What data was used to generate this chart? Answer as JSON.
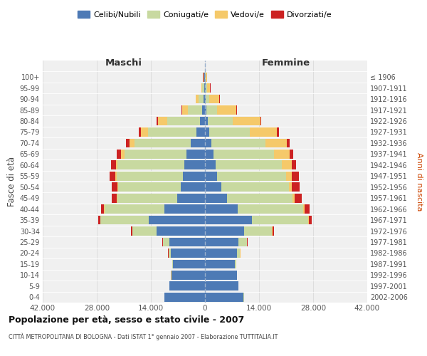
{
  "age_groups": [
    "0-4",
    "5-9",
    "10-14",
    "15-19",
    "20-24",
    "25-29",
    "30-34",
    "35-39",
    "40-44",
    "45-49",
    "50-54",
    "55-59",
    "60-64",
    "65-69",
    "70-74",
    "75-79",
    "80-84",
    "85-89",
    "90-94",
    "95-99",
    "100+"
  ],
  "birth_years": [
    "2002-2006",
    "1997-2001",
    "1992-1996",
    "1987-1991",
    "1982-1986",
    "1977-1981",
    "1972-1976",
    "1967-1971",
    "1962-1966",
    "1957-1961",
    "1952-1956",
    "1947-1951",
    "1942-1946",
    "1937-1941",
    "1932-1936",
    "1927-1931",
    "1922-1926",
    "1917-1921",
    "1912-1916",
    "1907-1911",
    "≤ 1906"
  ],
  "colors": {
    "celibe": "#4d7ab5",
    "coniugato": "#c8d9a0",
    "vedovo": "#f5c96a",
    "divorziato": "#cc2222"
  },
  "males": {
    "celibe": [
      10500,
      9200,
      8700,
      8200,
      8800,
      9200,
      12500,
      14500,
      10500,
      7200,
      6200,
      5700,
      5400,
      4700,
      3700,
      2200,
      1300,
      650,
      430,
      220,
      110
    ],
    "coniugato": [
      50,
      50,
      50,
      200,
      600,
      1600,
      6200,
      12500,
      15500,
      15500,
      16200,
      17200,
      17200,
      16200,
      14500,
      12500,
      8500,
      3700,
      1300,
      450,
      220
    ],
    "vedovo": [
      5,
      5,
      5,
      10,
      20,
      30,
      50,
      80,
      100,
      150,
      200,
      300,
      500,
      900,
      1400,
      1900,
      2400,
      1500,
      650,
      250,
      120
    ],
    "divorziato": [
      10,
      10,
      10,
      50,
      100,
      200,
      400,
      600,
      800,
      1200,
      1500,
      1500,
      1200,
      1000,
      800,
      600,
      300,
      200,
      100,
      50,
      30
    ]
  },
  "females": {
    "celibe": [
      10000,
      8700,
      8200,
      7800,
      8300,
      8700,
      10200,
      12200,
      8500,
      5700,
      4200,
      3200,
      2700,
      2200,
      1700,
      1100,
      650,
      350,
      250,
      130,
      60
    ],
    "coniugato": [
      50,
      50,
      50,
      300,
      800,
      2200,
      7200,
      14500,
      17000,
      17000,
      17500,
      17800,
      17200,
      15700,
      14000,
      10500,
      6500,
      2700,
      900,
      350,
      120
    ],
    "vedovo": [
      5,
      5,
      5,
      10,
      30,
      50,
      100,
      200,
      300,
      500,
      800,
      1500,
      2500,
      4000,
      5500,
      7000,
      7200,
      5000,
      2600,
      900,
      350
    ],
    "divorziato": [
      10,
      10,
      10,
      40,
      80,
      150,
      400,
      800,
      1200,
      1800,
      2000,
      1800,
      1200,
      1000,
      700,
      500,
      250,
      150,
      80,
      40,
      20
    ]
  },
  "xlim": 42000,
  "xtick_labels": [
    "42.000",
    "28.000",
    "14.000",
    "0",
    "14.000",
    "28.000",
    "42.000"
  ],
  "title": "Popolazione per età, sesso e stato civile - 2007",
  "subtitle": "CITTÀ METROPOLITANA DI BOLOGNA - Dati ISTAT 1° gennaio 2007 - Elaborazione TUTTITALIA.IT",
  "ylabel_left": "Fasce di età",
  "ylabel_right": "Anni di nascita",
  "xlabel_maschi": "Maschi",
  "xlabel_femmine": "Femmine",
  "legend_labels": [
    "Celibi/Nubili",
    "Coniugati/e",
    "Vedovi/e",
    "Divorziati/e"
  ],
  "background_color": "#ffffff",
  "plot_bg_color": "#f0f0f0",
  "grid_color": "#dddddd"
}
